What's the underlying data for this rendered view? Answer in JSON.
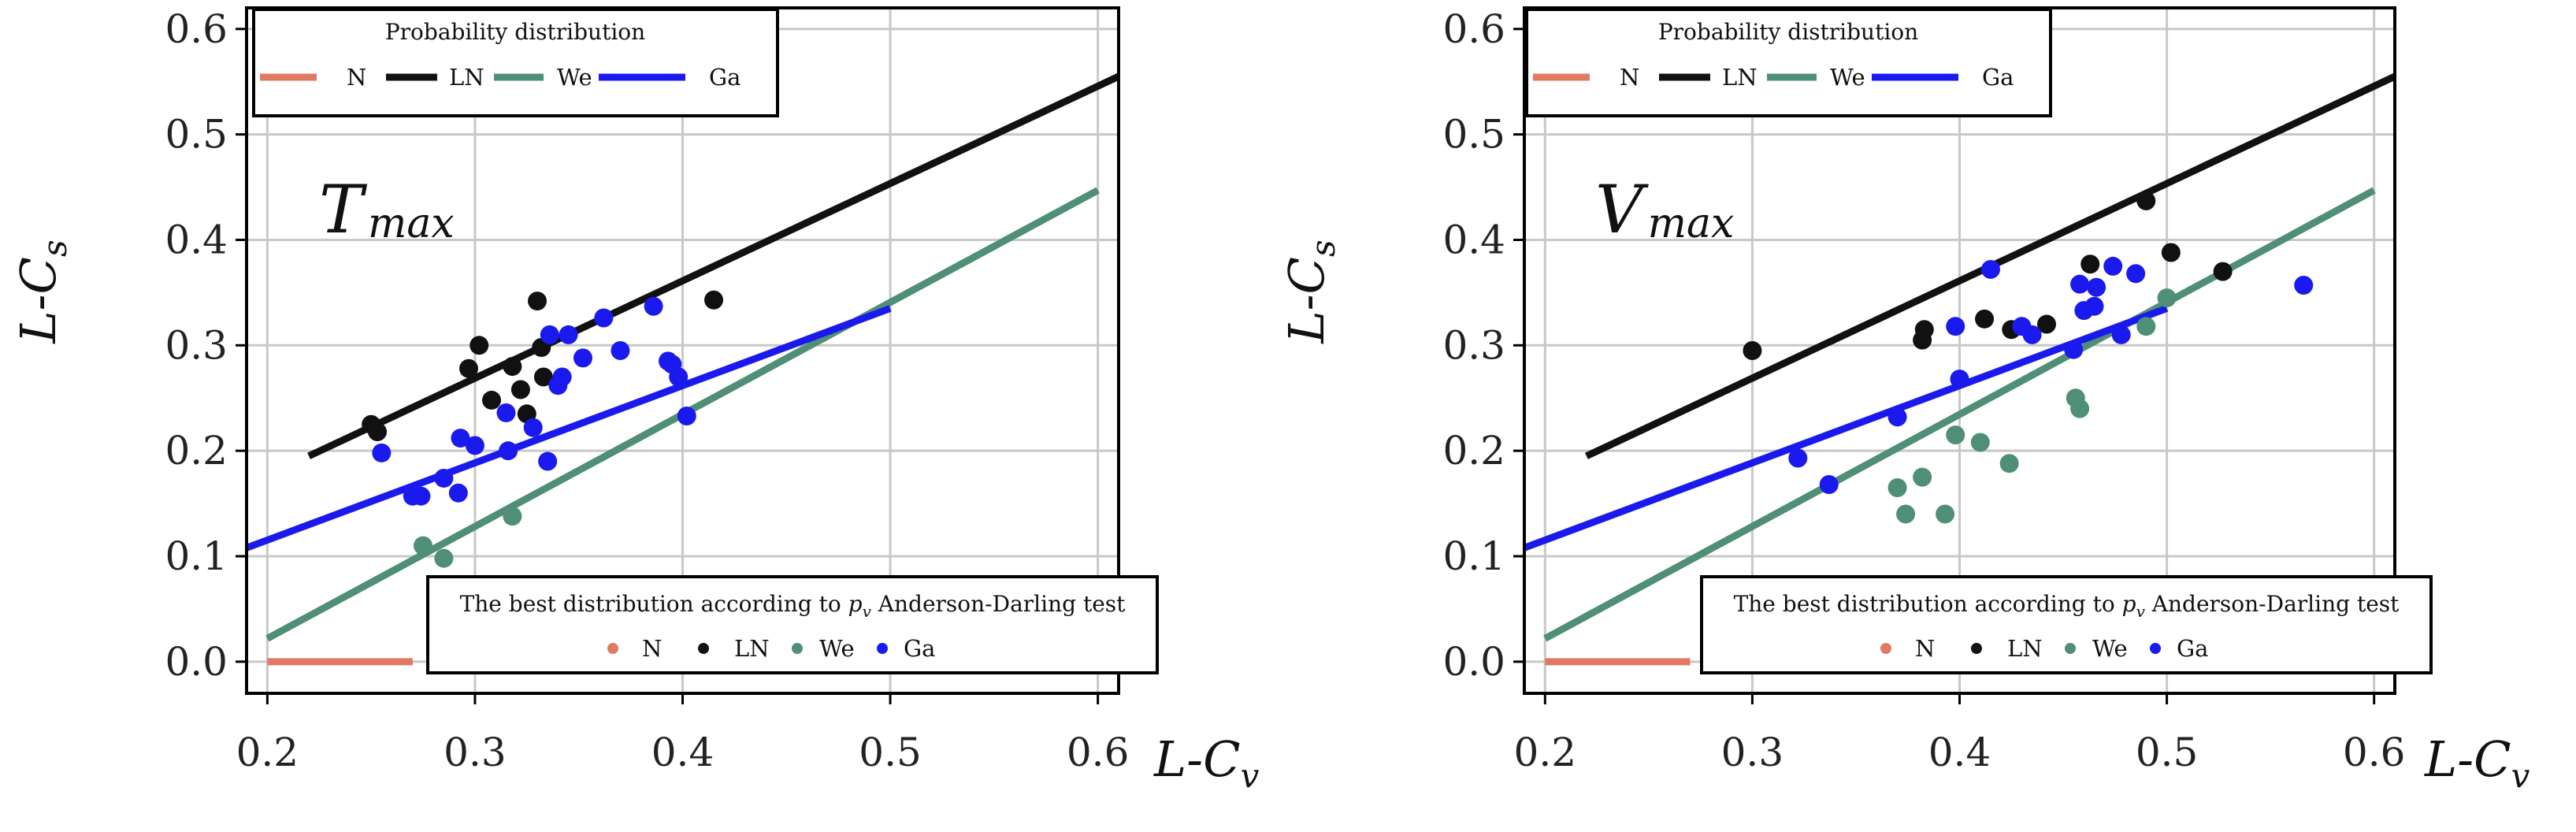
{
  "colors": {
    "N": "#e07a62",
    "LN": "#111111",
    "We": "#4f8f76",
    "Ga": "#1a1aee",
    "grid": "#c8c8c8",
    "frame": "#000000"
  },
  "chart_data": [
    {
      "type": "scatter",
      "panel_label": {
        "main": "T",
        "sub": "max"
      },
      "xlabel": {
        "main": "L-C",
        "sub": "v"
      },
      "ylabel": {
        "main": "L-C",
        "sub": "s"
      },
      "xlim": [
        0.19,
        0.61
      ],
      "ylim": [
        -0.03,
        0.62
      ],
      "xticks": [
        "0.2",
        "0.3",
        "0.4",
        "0.5",
        "0.6"
      ],
      "yticks": [
        "0.0",
        "0.1",
        "0.2",
        "0.3",
        "0.4",
        "0.5",
        "0.6"
      ],
      "legend_top": {
        "title": "Probability distribution",
        "items": [
          "N",
          "LN",
          "We",
          "Ga"
        ]
      },
      "legend_bottom": {
        "title_pre": "The best distribution according to ",
        "title_sym": "p",
        "title_sub": "v",
        "title_post": " Anderson-Darling test",
        "items": [
          "N",
          "LN",
          "We",
          "Ga"
        ]
      },
      "lines": [
        {
          "name": "N",
          "x": [
            0.2,
            0.27
          ],
          "y": [
            0.0,
            0.0
          ]
        },
        {
          "name": "LN",
          "x": [
            0.22,
            0.61
          ],
          "y": [
            0.195,
            0.555
          ]
        },
        {
          "name": "We",
          "x": [
            0.2,
            0.6
          ],
          "y": [
            0.022,
            0.447
          ]
        },
        {
          "name": "Ga",
          "x": [
            0.19,
            0.5
          ],
          "y": [
            0.108,
            0.335
          ]
        }
      ],
      "points": [
        {
          "name": "LN",
          "x": [
            0.25,
            0.253,
            0.297,
            0.302,
            0.308,
            0.318,
            0.322,
            0.325,
            0.33,
            0.333,
            0.415,
            0.332
          ],
          "y": [
            0.225,
            0.218,
            0.278,
            0.3,
            0.248,
            0.28,
            0.258,
            0.235,
            0.342,
            0.27,
            0.343,
            0.298
          ]
        },
        {
          "name": "We",
          "x": [
            0.275,
            0.285,
            0.318
          ],
          "y": [
            0.11,
            0.098,
            0.138
          ]
        },
        {
          "name": "Ga",
          "x": [
            0.255,
            0.27,
            0.274,
            0.285,
            0.292,
            0.293,
            0.3,
            0.316,
            0.328,
            0.335,
            0.336,
            0.34,
            0.342,
            0.345,
            0.352,
            0.362,
            0.37,
            0.386,
            0.393,
            0.398,
            0.402,
            0.395,
            0.315
          ],
          "y": [
            0.198,
            0.157,
            0.157,
            0.174,
            0.16,
            0.212,
            0.205,
            0.2,
            0.222,
            0.19,
            0.31,
            0.262,
            0.27,
            0.31,
            0.288,
            0.326,
            0.295,
            0.337,
            0.285,
            0.27,
            0.233,
            0.282,
            0.236
          ]
        }
      ]
    },
    {
      "type": "scatter",
      "panel_label": {
        "main": "V",
        "sub": "max"
      },
      "xlabel": {
        "main": "L-C",
        "sub": "v"
      },
      "ylabel": {
        "main": "L-C",
        "sub": "s"
      },
      "xlim": [
        0.19,
        0.61
      ],
      "ylim": [
        -0.03,
        0.62
      ],
      "xticks": [
        "0.2",
        "0.3",
        "0.4",
        "0.5",
        "0.6"
      ],
      "yticks": [
        "0.0",
        "0.1",
        "0.2",
        "0.3",
        "0.4",
        "0.5",
        "0.6"
      ],
      "legend_top": {
        "title": "Probability distribution",
        "items": [
          "N",
          "LN",
          "We",
          "Ga"
        ]
      },
      "legend_bottom": {
        "title_pre": "The best distribution according to ",
        "title_sym": "p",
        "title_sub": "v",
        "title_post": " Anderson-Darling test",
        "items": [
          "N",
          "LN",
          "We",
          "Ga"
        ]
      },
      "lines": [
        {
          "name": "N",
          "x": [
            0.2,
            0.27
          ],
          "y": [
            0.0,
            0.0
          ]
        },
        {
          "name": "LN",
          "x": [
            0.22,
            0.61
          ],
          "y": [
            0.195,
            0.555
          ]
        },
        {
          "name": "We",
          "x": [
            0.2,
            0.6
          ],
          "y": [
            0.022,
            0.447
          ]
        },
        {
          "name": "Ga",
          "x": [
            0.19,
            0.5
          ],
          "y": [
            0.108,
            0.335
          ]
        }
      ],
      "points": [
        {
          "name": "LN",
          "x": [
            0.3,
            0.382,
            0.383,
            0.412,
            0.425,
            0.442,
            0.463,
            0.49,
            0.502,
            0.527
          ],
          "y": [
            0.295,
            0.305,
            0.315,
            0.325,
            0.315,
            0.32,
            0.377,
            0.437,
            0.388,
            0.37
          ]
        },
        {
          "name": "We",
          "x": [
            0.37,
            0.374,
            0.382,
            0.393,
            0.398,
            0.41,
            0.424,
            0.456,
            0.458,
            0.49,
            0.5
          ],
          "y": [
            0.165,
            0.14,
            0.175,
            0.14,
            0.215,
            0.208,
            0.188,
            0.25,
            0.24,
            0.318,
            0.345
          ]
        },
        {
          "name": "Ga",
          "x": [
            0.322,
            0.337,
            0.37,
            0.398,
            0.4,
            0.415,
            0.43,
            0.435,
            0.455,
            0.458,
            0.46,
            0.465,
            0.466,
            0.474,
            0.478,
            0.485,
            0.566
          ],
          "y": [
            0.193,
            0.168,
            0.232,
            0.318,
            0.268,
            0.372,
            0.318,
            0.31,
            0.296,
            0.358,
            0.333,
            0.337,
            0.355,
            0.375,
            0.31,
            0.368,
            0.357
          ]
        }
      ]
    }
  ]
}
